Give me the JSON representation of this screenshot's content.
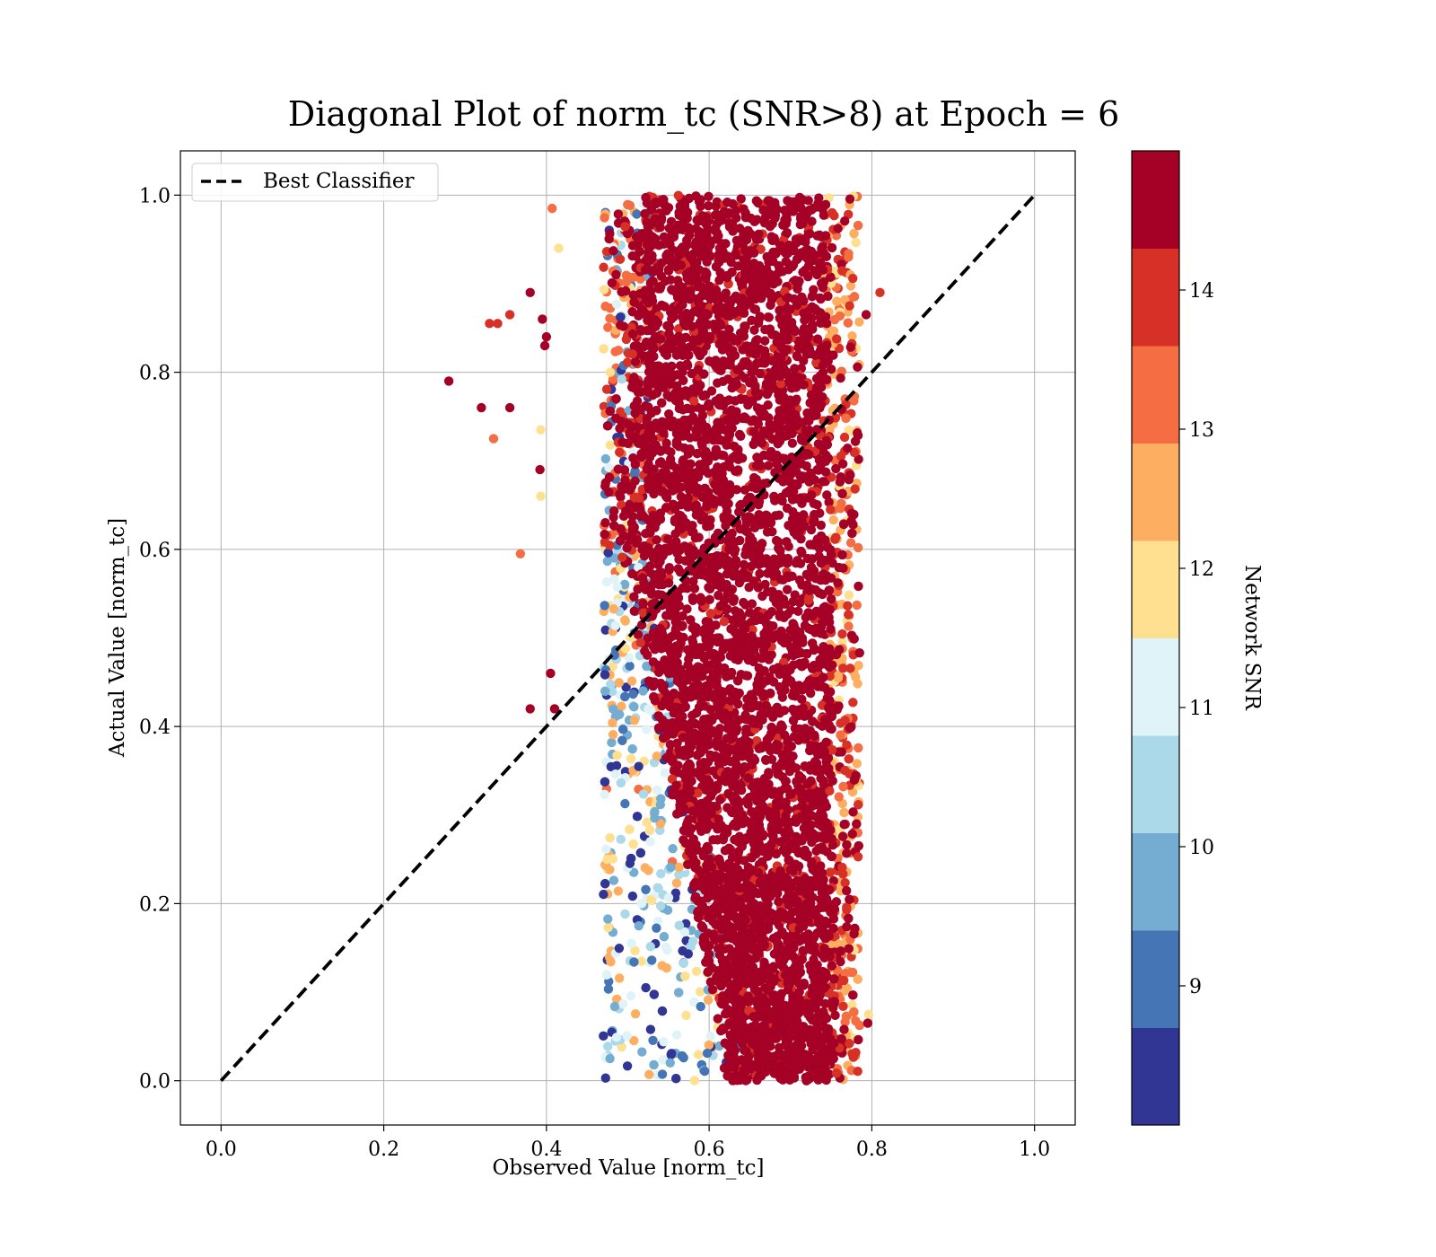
{
  "chart_data": {
    "type": "scatter",
    "title": "Diagonal Plot of norm_tc (SNR>8) at Epoch = 6",
    "xlabel": "Observed Value [norm_tc]",
    "ylabel": "Actual Value [norm_tc]",
    "xlim": [
      -0.05,
      1.05
    ],
    "ylim": [
      -0.05,
      1.05
    ],
    "x_ticks": [
      "0.0",
      "0.2",
      "0.4",
      "0.6",
      "0.8",
      "1.0"
    ],
    "y_ticks": [
      "0.0",
      "0.2",
      "0.4",
      "0.6",
      "0.8",
      "1.0"
    ],
    "grid": true,
    "legend": {
      "placement": "top-left",
      "entries": [
        "Best Classifier"
      ]
    },
    "reference_line": {
      "name": "Best Classifier",
      "x": [
        0.0,
        1.0
      ],
      "y": [
        0.0,
        1.0
      ],
      "style": "dashed",
      "color": "#000000"
    },
    "colorbar": {
      "label": "Network SNR",
      "range": [
        8,
        15
      ],
      "tick_values": [
        9,
        10,
        11,
        12,
        13,
        14
      ],
      "tick_labels": [
        "9",
        "10",
        "11",
        "12",
        "13",
        "14"
      ],
      "colors": [
        "#313695",
        "#4575b4",
        "#74add1",
        "#abd9e9",
        "#e0f3f8",
        "#fee090",
        "#fdae61",
        "#f46d43",
        "#d73027",
        "#a50026"
      ],
      "levels": 10
    },
    "point_distribution": {
      "description_values": "dense cloud of predictions",
      "x_range_main": [
        0.47,
        0.78
      ],
      "y_range": [
        0.0,
        1.0
      ],
      "dominant_color": "#a50026"
    },
    "outliers": [
      {
        "x": 0.28,
        "y": 0.79,
        "snr": 15
      },
      {
        "x": 0.32,
        "y": 0.76,
        "snr": 15
      },
      {
        "x": 0.335,
        "y": 0.725,
        "snr": 13
      },
      {
        "x": 0.33,
        "y": 0.855,
        "snr": 14
      },
      {
        "x": 0.34,
        "y": 0.855,
        "snr": 14
      },
      {
        "x": 0.355,
        "y": 0.76,
        "snr": 15
      },
      {
        "x": 0.355,
        "y": 0.865,
        "snr": 14
      },
      {
        "x": 0.368,
        "y": 0.595,
        "snr": 13
      },
      {
        "x": 0.38,
        "y": 0.89,
        "snr": 15
      },
      {
        "x": 0.38,
        "y": 0.42,
        "snr": 15
      },
      {
        "x": 0.392,
        "y": 0.69,
        "snr": 15
      },
      {
        "x": 0.393,
        "y": 0.735,
        "snr": 12
      },
      {
        "x": 0.393,
        "y": 0.66,
        "snr": 12
      },
      {
        "x": 0.395,
        "y": 0.86,
        "snr": 15
      },
      {
        "x": 0.398,
        "y": 0.83,
        "snr": 15
      },
      {
        "x": 0.4,
        "y": 0.84,
        "snr": 15
      },
      {
        "x": 0.405,
        "y": 0.46,
        "snr": 15
      },
      {
        "x": 0.407,
        "y": 0.985,
        "snr": 13
      },
      {
        "x": 0.41,
        "y": 0.42,
        "snr": 15
      },
      {
        "x": 0.415,
        "y": 0.94,
        "snr": 12
      },
      {
        "x": 0.81,
        "y": 0.89,
        "snr": 14
      },
      {
        "x": 0.793,
        "y": 0.865,
        "snr": 15
      },
      {
        "x": 0.796,
        "y": 0.075,
        "snr": 12
      },
      {
        "x": 0.795,
        "y": 0.065,
        "snr": 15
      }
    ]
  }
}
